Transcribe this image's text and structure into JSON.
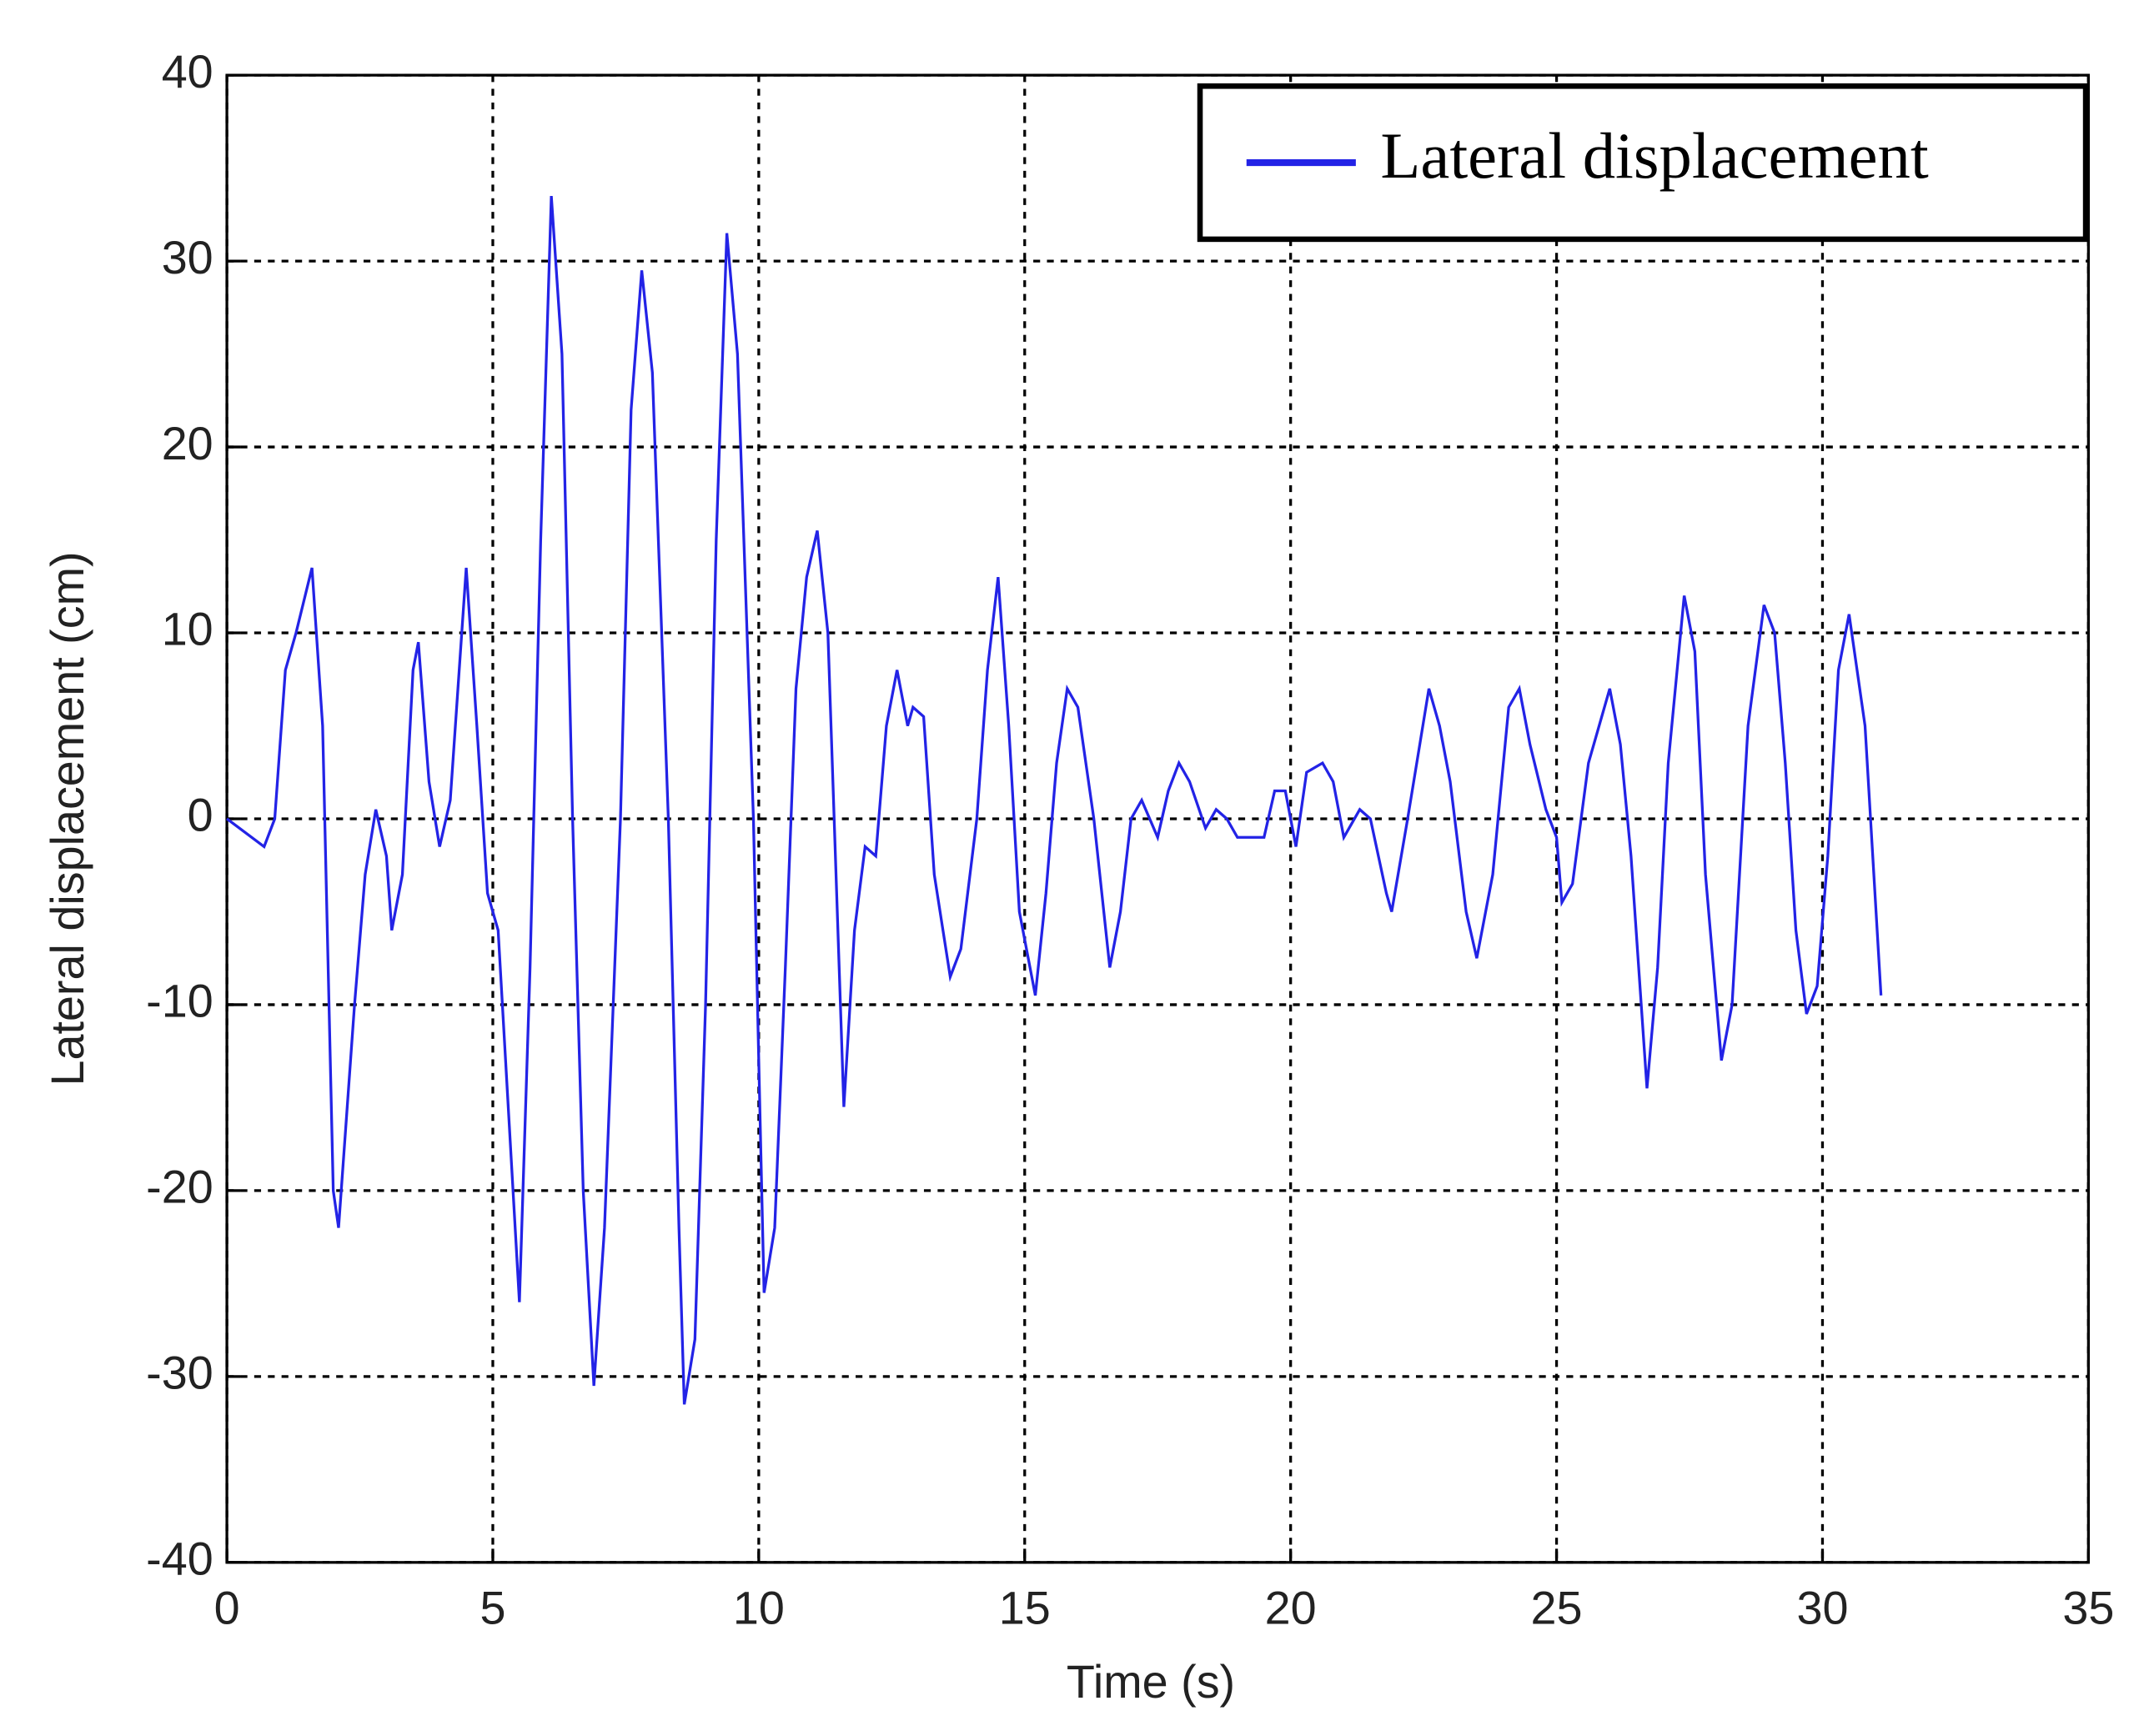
{
  "chart_data": {
    "type": "line",
    "xlabel": "Time (s)",
    "ylabel": "Lateral displacement (cm)",
    "xlim": [
      0,
      35
    ],
    "xticks": [
      0,
      5,
      10,
      15,
      20,
      25,
      30,
      35
    ],
    "ylim": [
      -40,
      40
    ],
    "yticks": [
      -40,
      -30,
      -20,
      -10,
      0,
      10,
      20,
      30,
      40
    ],
    "grid": true,
    "legend": "upper right",
    "x": [
      0,
      0.7,
      0.9,
      1.1,
      1.3,
      1.6,
      1.8,
      2.0,
      2.1,
      2.4,
      2.6,
      2.8,
      3.0,
      3.1,
      3.3,
      3.5,
      3.6,
      3.8,
      4.0,
      4.2,
      4.5,
      4.7,
      4.9,
      5.1,
      5.3,
      5.5,
      5.7,
      5.9,
      6.1,
      6.3,
      6.5,
      6.7,
      6.9,
      7.1,
      7.4,
      7.6,
      7.8,
      8.0,
      8.3,
      8.5,
      8.6,
      8.8,
      9.0,
      9.2,
      9.4,
      9.6,
      9.9,
      10.0,
      10.1,
      10.3,
      10.5,
      10.7,
      10.9,
      11.1,
      11.3,
      11.5,
      11.6,
      11.8,
      12.0,
      12.2,
      12.4,
      12.6,
      12.8,
      12.9,
      13.1,
      13.3,
      13.6,
      13.8,
      14.1,
      14.3,
      14.5,
      14.7,
      14.9,
      15.2,
      15.4,
      15.6,
      15.8,
      16.0,
      16.3,
      16.6,
      16.8,
      17.0,
      17.2,
      17.5,
      17.7,
      17.9,
      18.1,
      18.4,
      18.6,
      18.8,
      19.0,
      19.5,
      19.7,
      19.9,
      20.0,
      20.1,
      20.3,
      20.6,
      20.8,
      21.0,
      21.3,
      21.5,
      21.8,
      21.9,
      22.2,
      22.6,
      22.8,
      23.0,
      23.3,
      23.5,
      23.8,
      24.1,
      24.3,
      24.5,
      24.8,
      25.0,
      25.1,
      25.3,
      25.6,
      26.0,
      26.2,
      26.4,
      26.7,
      26.9,
      27.1,
      27.4,
      27.6,
      27.8,
      28.1,
      28.3,
      28.6,
      28.9,
      29.1,
      29.3,
      29.5,
      29.7,
      29.9,
      30.1,
      30.3,
      30.5,
      30.8,
      31.1
    ],
    "series": [
      {
        "name": "Lateral displacement",
        "color": "#2323e6",
        "values": [
          0,
          -1.5,
          0,
          8,
          10,
          13.5,
          5,
          -20,
          -22,
          -10,
          -3,
          0.5,
          -2,
          -6,
          -3,
          8,
          9.5,
          2,
          -1.5,
          1,
          13.5,
          5,
          -4,
          -6,
          -16,
          -26,
          -8,
          15,
          33.5,
          25,
          0,
          -20,
          -30.5,
          -22,
          0,
          22,
          29.5,
          24,
          0,
          -22,
          -31.5,
          -28,
          -10,
          15,
          31.5,
          25,
          0,
          -13,
          -25.5,
          -22,
          -8,
          7,
          13,
          15.5,
          10,
          -7,
          -15.5,
          -6,
          -1.5,
          -2,
          5,
          8,
          5,
          6,
          5.5,
          -3,
          -8.5,
          -7,
          0,
          8,
          13,
          5,
          -5,
          -9.5,
          -4,
          3,
          7,
          6,
          0,
          -8,
          -5,
          0,
          1,
          -1,
          1.5,
          3,
          2,
          -0.5,
          0.5,
          0,
          -1,
          -1,
          1.5,
          1.5,
          0,
          -1.5,
          2.5,
          3,
          2,
          -1,
          0.5,
          0,
          -4,
          -5,
          0,
          7,
          5,
          2,
          -5,
          -7.5,
          -3,
          6,
          7,
          4,
          0.5,
          -1,
          -4.5,
          -3.5,
          3,
          7,
          4,
          -2,
          -14.5,
          -8,
          3,
          12,
          9,
          -3,
          -13,
          -10,
          5,
          11.5,
          10,
          3,
          -6,
          -10.5,
          -9,
          -2,
          8,
          11,
          5,
          -9.5
        ]
      }
    ]
  }
}
